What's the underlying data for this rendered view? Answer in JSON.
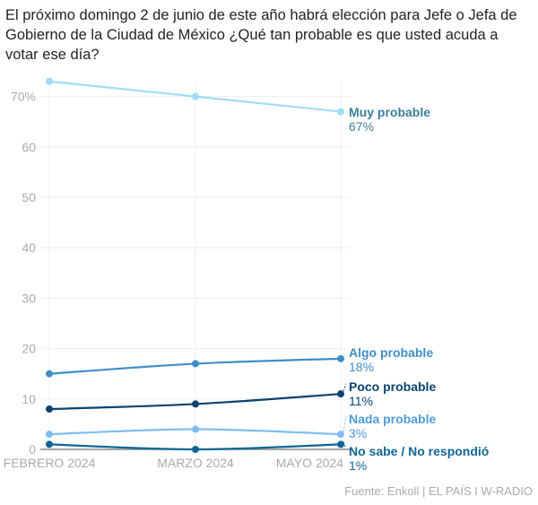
{
  "title": "El próximo domingo 2 de junio de este año habrá elección para Jefe o Jefa de Gobierno de la Ciudad de México ¿Qué tan probable es que usted acuda a votar ese día?",
  "source": "Fuente: Enkoll | EL PAÍS I W-RADIO",
  "chart_data": {
    "type": "line",
    "title": "El próximo domingo 2 de junio de este año habrá elección para Jefe o Jefa de Gobierno de la Ciudad de México ¿Qué tan probable es que usted acuda a votar ese día?",
    "x": [
      "FEBRERO 2024",
      "MARZO 2024",
      "MAYO 2024"
    ],
    "ylim": [
      0,
      73
    ],
    "yticks": [
      0,
      10,
      20,
      30,
      40,
      50,
      60,
      70
    ],
    "ytick_labels": [
      "0",
      "10",
      "20",
      "30",
      "40",
      "50",
      "60",
      "70%"
    ],
    "grid": true,
    "legend": "direct labels at right end",
    "series": [
      {
        "name": "Muy probable",
        "values": [
          73,
          70,
          67
        ],
        "end_label": "67%",
        "color": "#9fdcf7",
        "label_color": "#3a7f9e"
      },
      {
        "name": "Algo probable",
        "values": [
          15,
          17,
          18
        ],
        "end_label": "18%",
        "color": "#3f8ec8",
        "label_color": "#3f8ec8"
      },
      {
        "name": "Poco probable",
        "values": [
          8,
          9,
          11
        ],
        "end_label": "11%",
        "color": "#0a436f",
        "label_color": "#0a436f"
      },
      {
        "name": "Nada probable",
        "values": [
          3,
          4,
          3
        ],
        "end_label": "3%",
        "color": "#7fbdf0",
        "label_color": "#4d9bd6"
      },
      {
        "name": "No sabe / No respondió",
        "values": [
          1,
          0,
          1
        ],
        "end_label": "1%",
        "color": "#0f6696",
        "label_color": "#0f6696"
      }
    ]
  }
}
